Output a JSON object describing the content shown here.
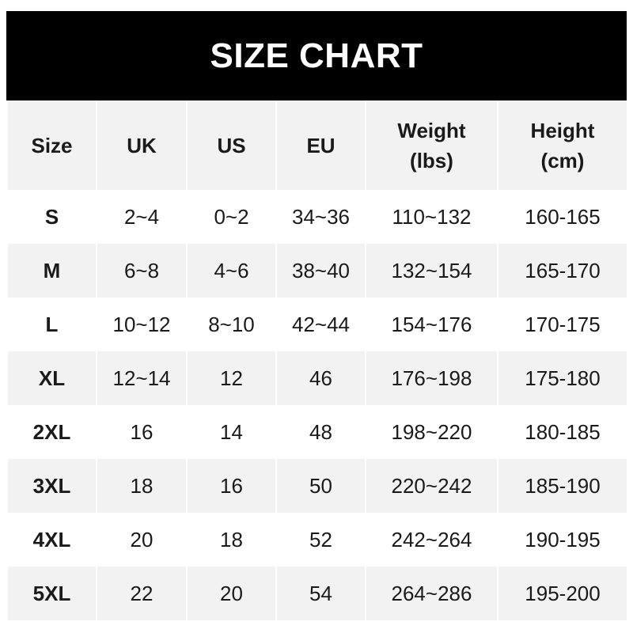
{
  "title": "SIZE CHART",
  "columns": [
    "Size",
    "UK",
    "US",
    "EU",
    "Weight\n(lbs)",
    "Height\n(cm)"
  ],
  "rows": [
    [
      "S",
      "2~4",
      "0~2",
      "34~36",
      "110~132",
      "160-165"
    ],
    [
      "M",
      "6~8",
      "4~6",
      "38~40",
      "132~154",
      "165-170"
    ],
    [
      "L",
      "10~12",
      "8~10",
      "42~44",
      "154~176",
      "170-175"
    ],
    [
      "XL",
      "12~14",
      "12",
      "46",
      "176~198",
      "175-180"
    ],
    [
      "2XL",
      "16",
      "14",
      "48",
      "198~220",
      "180-185"
    ],
    [
      "3XL",
      "18",
      "16",
      "50",
      "220~242",
      "185-190"
    ],
    [
      "4XL",
      "20",
      "18",
      "52",
      "242~264",
      "190-195"
    ],
    [
      "5XL",
      "22",
      "20",
      "54",
      "264~286",
      "195-200"
    ]
  ],
  "colors": {
    "title_bg": "#000000",
    "header_bg": "#f2f2f2",
    "stripe_bg": "#f2f2f2"
  }
}
